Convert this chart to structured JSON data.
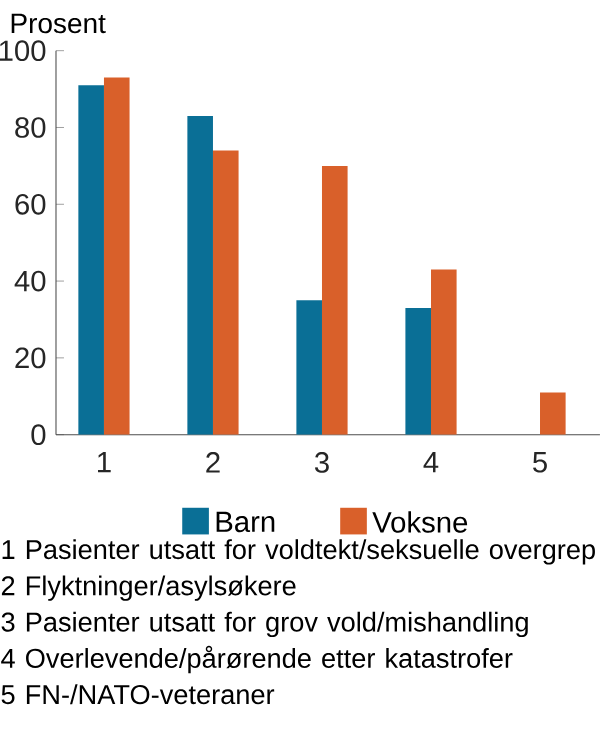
{
  "chart_data": {
    "type": "bar",
    "ylabel": "Prosent",
    "categories": [
      "1",
      "2",
      "3",
      "4",
      "5"
    ],
    "series": [
      {
        "name": "Barn",
        "color": "#0a6f96",
        "values": [
          91,
          83,
          35,
          33,
          null
        ]
      },
      {
        "name": "Voksne",
        "color": "#d9602a",
        "values": [
          93,
          74,
          70,
          43,
          11
        ]
      }
    ],
    "ylim": [
      0,
      100
    ],
    "yticks": [
      0,
      20,
      40,
      60,
      80,
      100
    ],
    "grid": false,
    "legend": "bottom",
    "annotations": [
      "1 Pasienter utsatt for voldtekt/seksuelle overgrep",
      "2 Flyktninger/asylsøkere",
      "3 Pasienter utsatt for grov vold/mishandling",
      "4 Overlevende/pårørende etter katastrofer",
      "5 FN-/NATO-veteraner"
    ]
  }
}
